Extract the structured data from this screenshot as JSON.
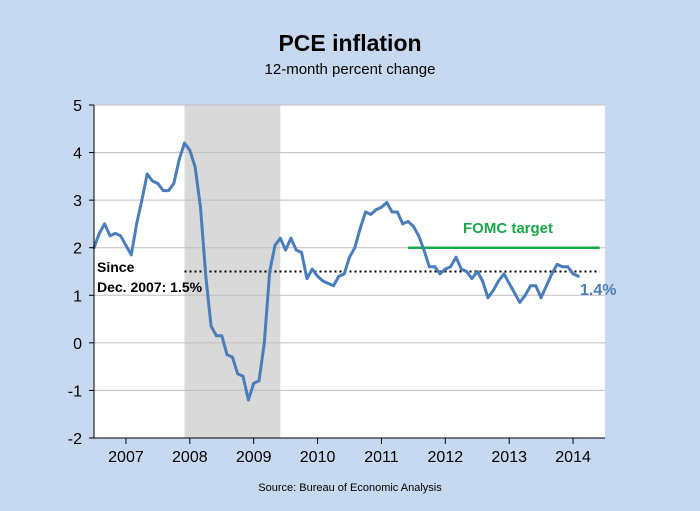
{
  "title": "PCE inflation",
  "subtitle": "12-month percent change",
  "source": "Source: Bureau of Economic Analysis",
  "colors": {
    "background": "#c6d9f0",
    "plot_area": "#ffffff",
    "series": "#4a7ebb",
    "target": "#1aa64a",
    "recession_shade": "#d9d9d9",
    "gridline": "#bfbfbf"
  },
  "chart_data": {
    "type": "line",
    "title": "PCE inflation",
    "subtitle": "12-month percent change",
    "ylim": [
      -2,
      5
    ],
    "yticks": [
      -2,
      -1,
      0,
      1,
      2,
      3,
      4,
      5
    ],
    "xlim": [
      2006.5,
      2014.5
    ],
    "xticks": [
      {
        "label": "2007",
        "center": 2007.0
      },
      {
        "label": "2008",
        "center": 2008.0
      },
      {
        "label": "2009",
        "center": 2009.0
      },
      {
        "label": "2010",
        "center": 2010.0
      },
      {
        "label": "2011",
        "center": 2011.0
      },
      {
        "label": "2012",
        "center": 2012.0
      },
      {
        "label": "2013",
        "center": 2013.0
      },
      {
        "label": "2014",
        "center": 2014.0
      }
    ],
    "grid": true,
    "recession": {
      "start": "2007-12",
      "end": "2009-06"
    },
    "target": {
      "label": "FOMC target",
      "value": 2.0,
      "start": "2011-06",
      "end": "2014-06"
    },
    "average": {
      "label_line1": "Since",
      "label_line2": "Dec. 2007: 1.5%",
      "value": 1.5,
      "start": "2007-12",
      "end": "2014-06"
    },
    "latest_label": "1.4%",
    "series": [
      {
        "values": [
          [
            "2006-07",
            2.0
          ],
          [
            "2006-08",
            2.3
          ],
          [
            "2006-09",
            2.5
          ],
          [
            "2006-10",
            2.25
          ],
          [
            "2006-11",
            2.3
          ],
          [
            "2006-12",
            2.25
          ],
          [
            "2007-01",
            2.05
          ],
          [
            "2007-02",
            1.85
          ],
          [
            "2007-03",
            2.5
          ],
          [
            "2007-04",
            3.0
          ],
          [
            "2007-05",
            3.55
          ],
          [
            "2007-06",
            3.4
          ],
          [
            "2007-07",
            3.35
          ],
          [
            "2007-08",
            3.2
          ],
          [
            "2007-09",
            3.2
          ],
          [
            "2007-10",
            3.35
          ],
          [
            "2007-11",
            3.85
          ],
          [
            "2007-12",
            4.2
          ],
          [
            "2008-01",
            4.05
          ],
          [
            "2008-02",
            3.7
          ],
          [
            "2008-03",
            2.85
          ],
          [
            "2008-04",
            1.4
          ],
          [
            "2008-05",
            0.35
          ],
          [
            "2008-06",
            0.15
          ],
          [
            "2008-07",
            0.15
          ],
          [
            "2008-08",
            -0.25
          ],
          [
            "2008-09",
            -0.3
          ],
          [
            "2008-10",
            -0.65
          ],
          [
            "2008-11",
            -0.7
          ],
          [
            "2008-12",
            -1.2
          ],
          [
            "2009-01",
            -0.85
          ],
          [
            "2009-02",
            -0.8
          ],
          [
            "2009-03",
            0.0
          ],
          [
            "2009-04",
            1.5
          ],
          [
            "2009-05",
            2.05
          ],
          [
            "2009-06",
            2.2
          ],
          [
            "2009-07",
            1.95
          ],
          [
            "2009-08",
            2.2
          ],
          [
            "2009-09",
            1.95
          ],
          [
            "2009-10",
            1.9
          ],
          [
            "2009-11",
            1.35
          ],
          [
            "2009-12",
            1.55
          ],
          [
            "2010-01",
            1.4
          ],
          [
            "2010-02",
            1.3
          ],
          [
            "2010-03",
            1.25
          ],
          [
            "2010-04",
            1.2
          ],
          [
            "2010-05",
            1.4
          ],
          [
            "2010-06",
            1.45
          ],
          [
            "2010-07",
            1.8
          ],
          [
            "2010-08",
            2.0
          ],
          [
            "2010-09",
            2.4
          ],
          [
            "2010-10",
            2.75
          ],
          [
            "2010-11",
            2.7
          ],
          [
            "2010-12",
            2.8
          ],
          [
            "2011-01",
            2.85
          ],
          [
            "2011-02",
            2.95
          ],
          [
            "2011-03",
            2.75
          ],
          [
            "2011-04",
            2.75
          ],
          [
            "2011-05",
            2.5
          ],
          [
            "2011-06",
            2.55
          ],
          [
            "2011-07",
            2.45
          ],
          [
            "2011-08",
            2.25
          ],
          [
            "2011-09",
            1.95
          ],
          [
            "2011-10",
            1.6
          ],
          [
            "2011-11",
            1.6
          ],
          [
            "2011-12",
            1.45
          ],
          [
            "2012-01",
            1.55
          ],
          [
            "2012-02",
            1.6
          ],
          [
            "2012-03",
            1.8
          ],
          [
            "2012-04",
            1.55
          ],
          [
            "2012-05",
            1.5
          ],
          [
            "2012-06",
            1.35
          ],
          [
            "2012-07",
            1.5
          ],
          [
            "2012-08",
            1.3
          ],
          [
            "2012-09",
            0.95
          ],
          [
            "2012-10",
            1.1
          ],
          [
            "2012-11",
            1.3
          ],
          [
            "2012-12",
            1.45
          ],
          [
            "2013-01",
            1.25
          ],
          [
            "2013-02",
            1.05
          ],
          [
            "2013-03",
            0.85
          ],
          [
            "2013-04",
            1.0
          ],
          [
            "2013-05",
            1.2
          ],
          [
            "2013-06",
            1.2
          ],
          [
            "2013-07",
            0.95
          ],
          [
            "2013-08",
            1.2
          ],
          [
            "2013-09",
            1.45
          ],
          [
            "2013-10",
            1.65
          ],
          [
            "2013-11",
            1.6
          ],
          [
            "2013-12",
            1.6
          ],
          [
            "2014-01",
            1.45
          ],
          [
            "2014-02",
            1.4
          ]
        ]
      }
    ]
  }
}
